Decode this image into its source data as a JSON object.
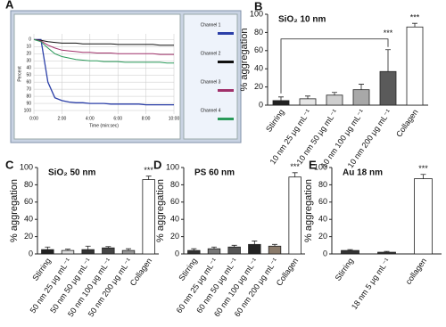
{
  "chart_data": [
    {
      "type": "line",
      "panel": "A",
      "xlabel": "Time (min:sec)",
      "ylabel": "Percent",
      "y_inverted": true,
      "x": [
        0,
        0.5,
        1,
        1.5,
        2,
        2.5,
        3,
        3.5,
        4,
        4.5,
        5,
        5.5,
        6,
        6.5,
        7,
        7.5,
        8,
        8.5,
        9,
        9.5,
        10
      ],
      "xlim": [
        0,
        10
      ],
      "xticks": [
        {
          "value": 0,
          "label": "0:00"
        },
        {
          "value": 2,
          "label": "2:00"
        },
        {
          "value": 4,
          "label": "4:00"
        },
        {
          "value": 6,
          "label": "6:00"
        },
        {
          "value": 8,
          "label": "8:00"
        },
        {
          "value": 10,
          "label": "10:00"
        }
      ],
      "ylim": [
        -8,
        105
      ],
      "yticks": [
        0,
        10,
        20,
        30,
        40,
        50,
        60,
        70,
        80,
        90,
        100
      ],
      "grid": true,
      "series": [
        {
          "name": "Channel 1",
          "color": "#2b3fa8",
          "values": [
            0,
            0,
            60,
            82,
            86,
            88,
            89,
            89,
            90,
            90,
            90,
            91,
            91,
            91,
            91,
            91,
            92,
            92,
            92,
            92,
            92
          ]
        },
        {
          "name": "Channel 2",
          "color": "#111111",
          "values": [
            0,
            1,
            3,
            4,
            5,
            5,
            5,
            6,
            6,
            6,
            6,
            6,
            7,
            7,
            7,
            7,
            7,
            7,
            8,
            8,
            8
          ]
        },
        {
          "name": "Channel 3",
          "color": "#a0306a",
          "values": [
            0,
            2,
            8,
            12,
            15,
            16,
            17,
            18,
            18,
            19,
            19,
            19,
            20,
            20,
            20,
            20,
            20,
            20,
            21,
            21,
            21
          ]
        },
        {
          "name": "Channel 4",
          "color": "#2a9a5a",
          "values": [
            0,
            3,
            12,
            20,
            24,
            26,
            28,
            29,
            30,
            30,
            31,
            31,
            31,
            32,
            32,
            32,
            32,
            32,
            32,
            33,
            33
          ]
        }
      ]
    },
    {
      "type": "bar",
      "panel": "B",
      "title": "SiO₂ 10 nm",
      "ylabel": "% aggregation",
      "categories": [
        "Stirring",
        "10 nm 25 μg mL⁻¹",
        "10 nm 50 μg mL⁻¹",
        "10 nm 100 μg mL⁻¹",
        "10 nm 200 μg mL⁻¹",
        "Collagen"
      ],
      "values": [
        5,
        7,
        11,
        17,
        37,
        86
      ],
      "errors": [
        4,
        3,
        3,
        6,
        24,
        4
      ],
      "colors": [
        "#222222",
        "#e6e6e6",
        "#cfcfcf",
        "#a8a8a8",
        "#5a5a5a",
        "#ffffff"
      ],
      "ylim": [
        0,
        100
      ],
      "yticks": [
        0,
        20,
        40,
        60,
        80,
        100
      ],
      "annotations": [
        "***",
        "***"
      ]
    },
    {
      "type": "bar",
      "panel": "C",
      "title": "SiO₂ 50 nm",
      "ylabel": "% aggregation",
      "categories": [
        "Stirring",
        "50 nm 25 μg mL⁻¹",
        "50 nm 50 μg mL⁻¹",
        "50 nm 100 μg mL⁻¹",
        "50 nm 200 μg mL⁻¹",
        "Collagen"
      ],
      "values": [
        5,
        4,
        5,
        7,
        4,
        86
      ],
      "errors": [
        3,
        1.5,
        4,
        1.5,
        2,
        4
      ],
      "colors": [
        "#222222",
        "#dddddd",
        "#333333",
        "#444444",
        "#999999",
        "#ffffff"
      ],
      "ylim": [
        0,
        100
      ],
      "yticks": [
        0,
        20,
        40,
        60,
        80,
        100
      ],
      "annotations": [
        "***"
      ]
    },
    {
      "type": "bar",
      "panel": "D",
      "title": "PS 60 nm",
      "ylabel": "% aggregation",
      "categories": [
        "Stirring",
        "60 nm 25 μg mL⁻¹",
        "60 nm 50 μg mL⁻¹",
        "60 nm 100 μg mL⁻¹",
        "60 nm 200 μg mL⁻¹",
        "Collagen"
      ],
      "values": [
        4,
        6,
        8,
        11,
        9,
        89
      ],
      "errors": [
        2,
        2,
        2,
        4,
        2,
        5
      ],
      "colors": [
        "#333333",
        "#777777",
        "#555555",
        "#222222",
        "#8a7a6a",
        "#ffffff"
      ],
      "ylim": [
        0,
        100
      ],
      "yticks": [
        0,
        20,
        40,
        60,
        80,
        100
      ],
      "annotations": [
        "***"
      ]
    },
    {
      "type": "bar",
      "panel": "E",
      "title": "Au 18 nm",
      "ylabel": "% aggregation",
      "categories": [
        "Stirring",
        "18 nm 5 μg mL⁻¹",
        "collagen"
      ],
      "values": [
        4,
        2,
        87
      ],
      "errors": [
        1,
        1,
        5
      ],
      "colors": [
        "#333333",
        "#333333",
        "#ffffff"
      ],
      "ylim": [
        0,
        100
      ],
      "yticks": [
        0,
        20,
        40,
        60,
        80,
        100
      ],
      "annotations": [
        "***"
      ]
    }
  ]
}
